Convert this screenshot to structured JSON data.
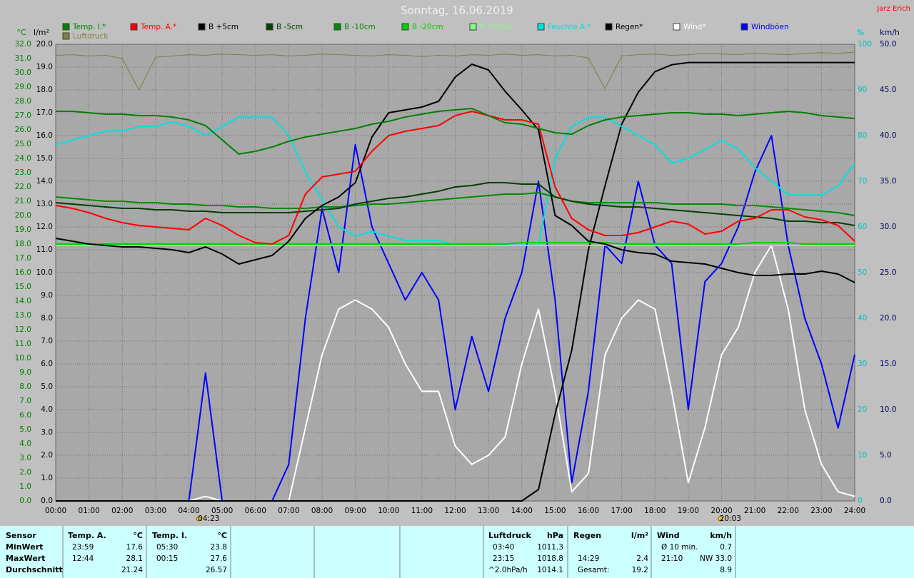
{
  "chart_data": {
    "type": "line",
    "title": "Sonntag, 16.06.2019",
    "author": "Jarz Erich",
    "ylabel": "°C",
    "y2label": "l/m²",
    "y3label": "%",
    "y4label": "km/h",
    "grid": true,
    "xlim": [
      0,
      24
    ],
    "xticks": [
      {
        "value": 0,
        "label": "00:00"
      },
      {
        "value": 1,
        "label": "01:00"
      },
      {
        "value": 2,
        "label": "02:00"
      },
      {
        "value": 3,
        "label": "03:00"
      },
      {
        "value": 4,
        "label": "04:00"
      },
      {
        "value": 5,
        "label": "05:00"
      },
      {
        "value": 6,
        "label": "06:00"
      },
      {
        "value": 7,
        "label": "07:00"
      },
      {
        "value": 8,
        "label": "08:00"
      },
      {
        "value": 9,
        "label": "09:00"
      },
      {
        "value": 10,
        "label": "10:00"
      },
      {
        "value": 11,
        "label": "11:00"
      },
      {
        "value": 12,
        "label": "12:00"
      },
      {
        "value": 13,
        "label": "13:00"
      },
      {
        "value": 14,
        "label": "14:00"
      },
      {
        "value": 15,
        "label": "15:00"
      },
      {
        "value": 16,
        "label": "16:00"
      },
      {
        "value": 17,
        "label": "17:00"
      },
      {
        "value": 18,
        "label": "18:00"
      },
      {
        "value": 19,
        "label": "19:00"
      },
      {
        "value": 20,
        "label": "20:00"
      },
      {
        "value": 21,
        "label": "21:00"
      },
      {
        "value": 22,
        "label": "22:00"
      },
      {
        "value": 23,
        "label": "23:00"
      },
      {
        "value": 24,
        "label": "24:00"
      }
    ],
    "ylim": [
      0,
      32
    ],
    "yticks": [
      {
        "value": 0,
        "label": "0.0"
      },
      {
        "value": 1,
        "label": "1.0"
      },
      {
        "value": 2,
        "label": "2.0"
      },
      {
        "value": 3,
        "label": "3.0"
      },
      {
        "value": 4,
        "label": "4.0"
      },
      {
        "value": 5,
        "label": "5.0"
      },
      {
        "value": 6,
        "label": "6.0"
      },
      {
        "value": 7,
        "label": "7.0"
      },
      {
        "value": 8,
        "label": "8.0"
      },
      {
        "value": 9,
        "label": "9.0"
      },
      {
        "value": 10,
        "label": "10.0"
      },
      {
        "value": 11,
        "label": "11.0"
      },
      {
        "value": 12,
        "label": "12.0"
      },
      {
        "value": 13,
        "label": "13.0"
      },
      {
        "value": 14,
        "label": "14.0"
      },
      {
        "value": 15,
        "label": "15.0"
      },
      {
        "value": 16,
        "label": "16.0"
      },
      {
        "value": 17,
        "label": "17.0"
      },
      {
        "value": 18,
        "label": "18.0"
      },
      {
        "value": 19,
        "label": "19.0"
      },
      {
        "value": 20,
        "label": "20.0"
      },
      {
        "value": 21,
        "label": "21.0"
      },
      {
        "value": 22,
        "label": "22.0"
      },
      {
        "value": 23,
        "label": "23.0"
      },
      {
        "value": 24,
        "label": "24.0"
      },
      {
        "value": 25,
        "label": "25.0"
      },
      {
        "value": 26,
        "label": "26.0"
      },
      {
        "value": 27,
        "label": "27.0"
      },
      {
        "value": 28,
        "label": "28.0"
      },
      {
        "value": 29,
        "label": "29.0"
      },
      {
        "value": 30,
        "label": "30.0"
      },
      {
        "value": 31,
        "label": "31.0"
      },
      {
        "value": 32,
        "label": "32.0"
      }
    ],
    "y2lim": [
      0,
      20
    ],
    "y2ticks": [
      {
        "value": 0,
        "label": "0.0"
      },
      {
        "value": 1,
        "label": "1.0"
      },
      {
        "value": 2,
        "label": "2.0"
      },
      {
        "value": 3,
        "label": "3.0"
      },
      {
        "value": 4,
        "label": "4.0"
      },
      {
        "value": 5,
        "label": "5.0"
      },
      {
        "value": 6,
        "label": "6.0"
      },
      {
        "value": 7,
        "label": "7.0"
      },
      {
        "value": 8,
        "label": "8.0"
      },
      {
        "value": 9,
        "label": "9.0"
      },
      {
        "value": 10,
        "label": "10.0"
      },
      {
        "value": 11,
        "label": "11.0"
      },
      {
        "value": 12,
        "label": "12.0"
      },
      {
        "value": 13,
        "label": "13.0"
      },
      {
        "value": 14,
        "label": "14.0"
      },
      {
        "value": 15,
        "label": "15.0"
      },
      {
        "value": 16,
        "label": "16.0"
      },
      {
        "value": 17,
        "label": "17.0"
      },
      {
        "value": 18,
        "label": "18.0"
      },
      {
        "value": 19,
        "label": "19.0"
      },
      {
        "value": 20,
        "label": "20.0"
      }
    ],
    "y3lim": [
      0,
      100
    ],
    "y3ticks": [
      0,
      10,
      20,
      30,
      40,
      50,
      60,
      70,
      80,
      90,
      100
    ],
    "y4lim": [
      0,
      50
    ],
    "y4ticks": [
      {
        "value": 0,
        "label": "0.0"
      },
      {
        "value": 5,
        "label": "5.0"
      },
      {
        "value": 10,
        "label": "10.0"
      },
      {
        "value": 15,
        "label": "15.0"
      },
      {
        "value": 20,
        "label": "20.0"
      },
      {
        "value": 25,
        "label": "25.0"
      },
      {
        "value": 30,
        "label": "30.0"
      },
      {
        "value": 35,
        "label": "35.0"
      },
      {
        "value": 40,
        "label": "40.0"
      },
      {
        "value": 45,
        "label": "45.0"
      },
      {
        "value": 50,
        "label": "50.0"
      }
    ],
    "y5lim": [
      950,
      1020
    ],
    "annotations": [
      {
        "x": 4.383,
        "label": "04:23"
      },
      {
        "x": 20.05,
        "label": "20:03"
      }
    ],
    "x": [
      0,
      0.5,
      1,
      1.5,
      2,
      2.5,
      3,
      3.5,
      4,
      4.5,
      5,
      5.5,
      6,
      6.5,
      7,
      7.5,
      8,
      8.5,
      9,
      9.5,
      10,
      10.5,
      11,
      11.5,
      12,
      12.5,
      13,
      13.5,
      14,
      14.5,
      15,
      15.5,
      16,
      16.5,
      17,
      17.5,
      18,
      18.5,
      19,
      19.5,
      20,
      20.5,
      21,
      21.5,
      22,
      22.5,
      23,
      23.5,
      24
    ],
    "series": [
      {
        "name": "Temp. I.*",
        "color": "#008000",
        "axis": "y",
        "values": [
          27.3,
          27.3,
          27.2,
          27.1,
          27.1,
          27.0,
          27.0,
          26.9,
          26.7,
          26.3,
          25.3,
          24.3,
          24.5,
          24.8,
          25.2,
          25.5,
          25.7,
          25.9,
          26.1,
          26.4,
          26.6,
          26.9,
          27.1,
          27.3,
          27.4,
          27.5,
          27.0,
          26.5,
          26.4,
          26.1,
          25.8,
          25.7,
          26.3,
          26.7,
          26.9,
          27.0,
          27.1,
          27.2,
          27.2,
          27.1,
          27.1,
          27.0,
          27.1,
          27.2,
          27.3,
          27.2,
          27.0,
          26.9,
          26.8
        ]
      },
      {
        "name": "Temp. A.*",
        "color": "#ff0000",
        "axis": "y",
        "values": [
          20.7,
          20.5,
          20.2,
          19.8,
          19.5,
          19.3,
          19.2,
          19.1,
          19.0,
          19.8,
          19.3,
          18.6,
          18.1,
          18.0,
          18.6,
          21.5,
          22.7,
          22.9,
          23.1,
          24.5,
          25.6,
          25.9,
          26.1,
          26.3,
          27.0,
          27.3,
          27.0,
          26.7,
          26.7,
          26.4,
          22.0,
          19.8,
          19.0,
          18.6,
          18.6,
          18.8,
          19.2,
          19.6,
          19.4,
          18.7,
          18.9,
          19.6,
          19.8,
          20.4,
          20.4,
          19.9,
          19.7,
          19.3,
          18.2
        ]
      },
      {
        "name": "B +5cm",
        "color": "#000000",
        "axis": "y",
        "values": [
          18.4,
          18.2,
          18.0,
          17.9,
          17.8,
          17.8,
          17.7,
          17.6,
          17.4,
          17.8,
          17.3,
          16.6,
          16.9,
          17.2,
          18.2,
          19.8,
          20.7,
          21.3,
          22.3,
          25.5,
          27.2,
          27.4,
          27.6,
          28.0,
          29.7,
          30.6,
          30.2,
          28.7,
          27.4,
          26.0,
          20.0,
          19.3,
          18.2,
          18.0,
          17.6,
          17.4,
          17.3,
          16.8,
          16.7,
          16.6,
          16.3,
          16.0,
          15.8,
          15.8,
          15.9,
          15.9,
          16.1,
          15.9,
          15.3
        ]
      },
      {
        "name": "B -5cm",
        "color": "#004000",
        "axis": "y",
        "values": [
          20.9,
          20.8,
          20.7,
          20.6,
          20.5,
          20.5,
          20.4,
          20.4,
          20.3,
          20.3,
          20.2,
          20.2,
          20.2,
          20.2,
          20.2,
          20.3,
          20.4,
          20.5,
          20.8,
          21.0,
          21.2,
          21.3,
          21.5,
          21.7,
          22.0,
          22.1,
          22.3,
          22.3,
          22.2,
          22.2,
          21.3,
          21.0,
          20.8,
          20.7,
          20.6,
          20.6,
          20.5,
          20.4,
          20.3,
          20.2,
          20.1,
          20.0,
          19.9,
          19.8,
          19.6,
          19.6,
          19.5,
          19.5,
          19.3
        ]
      },
      {
        "name": "B -10cm",
        "color": "#008c00",
        "axis": "y",
        "values": [
          21.3,
          21.2,
          21.1,
          21.0,
          21.0,
          20.9,
          20.9,
          20.8,
          20.8,
          20.7,
          20.7,
          20.6,
          20.6,
          20.5,
          20.5,
          20.5,
          20.6,
          20.6,
          20.7,
          20.8,
          20.8,
          20.9,
          21.0,
          21.1,
          21.2,
          21.3,
          21.4,
          21.5,
          21.5,
          21.6,
          21.3,
          21.0,
          20.9,
          20.9,
          20.9,
          20.9,
          20.9,
          20.8,
          20.8,
          20.8,
          20.8,
          20.7,
          20.7,
          20.6,
          20.5,
          20.4,
          20.3,
          20.2,
          20.0
        ]
      },
      {
        "name": "B -20cm",
        "color": "#00d000",
        "axis": "y",
        "values": [
          18.0,
          18.0,
          18.0,
          18.0,
          18.0,
          18.0,
          18.0,
          18.0,
          18.0,
          18.0,
          18.0,
          18.0,
          18.0,
          18.0,
          18.0,
          18.0,
          18.0,
          18.0,
          18.0,
          18.0,
          18.0,
          18.0,
          18.0,
          18.0,
          18.0,
          18.0,
          18.0,
          18.0,
          18.1,
          18.1,
          18.1,
          18.1,
          18.1,
          18.1,
          18.0,
          18.0,
          18.0,
          18.0,
          18.0,
          18.0,
          18.0,
          18.0,
          18.1,
          18.1,
          18.1,
          18.0,
          18.0,
          18.0,
          18.0
        ]
      },
      {
        "name": "B -50cm",
        "color": "#80ff80",
        "axis": "y",
        "values": [
          17.9,
          17.9,
          17.9,
          17.9,
          17.9,
          17.9,
          17.9,
          17.9,
          17.9,
          17.9,
          17.9,
          17.9,
          17.9,
          17.9,
          17.9,
          17.9,
          17.9,
          17.9,
          17.9,
          17.9,
          17.9,
          17.9,
          17.9,
          17.9,
          17.9,
          17.9,
          17.9,
          17.9,
          17.9,
          17.9,
          17.9,
          17.9,
          17.9,
          17.9,
          17.9,
          17.9,
          17.9,
          17.9,
          17.9,
          17.9,
          17.9,
          17.9,
          17.9,
          17.9,
          17.9,
          17.9,
          17.9,
          17.9,
          17.9
        ]
      },
      {
        "name": "Feuchte A.*",
        "color": "#00e0e0",
        "axis": "y3",
        "values": [
          78,
          79,
          80,
          81,
          81,
          82,
          82,
          83,
          82,
          80,
          82,
          84,
          84,
          84,
          80,
          72,
          66,
          60,
          58,
          59,
          58,
          57,
          57,
          57,
          56,
          56,
          56,
          56,
          56,
          56,
          75,
          82,
          84,
          84,
          82,
          80,
          78,
          74,
          75,
          77,
          79,
          77,
          73,
          70,
          67,
          67,
          67,
          69,
          74
        ]
      },
      {
        "name": "Regen*",
        "color": "#000000",
        "axis": "y2",
        "values": [
          0,
          0,
          0,
          0,
          0,
          0,
          0,
          0,
          0,
          0,
          0,
          0,
          0,
          0,
          0,
          0,
          0,
          0,
          0,
          0,
          0,
          0,
          0,
          0,
          0,
          0,
          0,
          0,
          0,
          0.5,
          3.8,
          6.6,
          11.0,
          13.8,
          16.5,
          17.9,
          18.8,
          19.1,
          19.2,
          19.2,
          19.2,
          19.2,
          19.2,
          19.2,
          19.2,
          19.2,
          19.2,
          19.2,
          19.2
        ]
      },
      {
        "name": "Wind*",
        "color": "#ffffff",
        "axis": "y4",
        "values": [
          0,
          0,
          0,
          0,
          0,
          0,
          0,
          0,
          0,
          0.5,
          0,
          0,
          0,
          0,
          0,
          8,
          16,
          21,
          22,
          21,
          19,
          15,
          12,
          12,
          6,
          4,
          5,
          7,
          15,
          21,
          12,
          1,
          3,
          16,
          20,
          22,
          21,
          12,
          2,
          8,
          16,
          19,
          25,
          28,
          21,
          10,
          4,
          1,
          0.5
        ]
      },
      {
        "name": "Windböen",
        "color": "#0000ff",
        "axis": "y4",
        "values": [
          0,
          0,
          0,
          0,
          0,
          0,
          0,
          0,
          0,
          14,
          0,
          0,
          0,
          0,
          4,
          20,
          32,
          25,
          39,
          30,
          26,
          22,
          25,
          22,
          10,
          18,
          12,
          20,
          25,
          35,
          22,
          2,
          12,
          28,
          26,
          35,
          28,
          26,
          10,
          24,
          26,
          30,
          36,
          40,
          28,
          20,
          15,
          8,
          16
        ]
      },
      {
        "name": "Luftdruck",
        "color": "#808040",
        "axis": "y5",
        "values": [
          1018.3,
          1018.4,
          1018.2,
          1018.3,
          1017.8,
          1013.0,
          1018.0,
          1018.2,
          1018.4,
          1018.3,
          1018.5,
          1018.4,
          1018.3,
          1018.4,
          1018.2,
          1018.3,
          1018.5,
          1018.4,
          1018.3,
          1018.2,
          1018.4,
          1018.3,
          1018.1,
          1018.3,
          1018.2,
          1018.4,
          1018.3,
          1018.5,
          1018.3,
          1018.4,
          1018.2,
          1018.3,
          1017.9,
          1013.2,
          1018.2,
          1018.4,
          1018.5,
          1018.3,
          1018.4,
          1018.6,
          1018.5,
          1018.4,
          1018.6,
          1018.5,
          1018.4,
          1018.6,
          1018.7,
          1018.6,
          1018.8
        ]
      }
    ]
  },
  "table": {
    "row_labels": [
      "Sensor",
      "MinWert",
      "MaxWert",
      "Durchschnitt"
    ],
    "columns": [
      {
        "header": "Temp. A.",
        "unit": "°C",
        "min": [
          "23:59",
          "17.6"
        ],
        "max": [
          "12:44",
          "28.1"
        ],
        "avg": [
          "21.24"
        ]
      },
      {
        "header": "Temp. I.",
        "unit": "°C",
        "min": [
          "05:30",
          "23.8"
        ],
        "max": [
          "00:15",
          "27.6"
        ],
        "avg": [
          "26.57"
        ]
      },
      {
        "header": "Luftdruck",
        "unit": "hPa",
        "min": [
          "03:40",
          "1011.3"
        ],
        "max": [
          "23:15",
          "1018.8"
        ],
        "avg": [
          "^2.0hPa/h",
          "1014.1"
        ]
      },
      {
        "header": "Regen",
        "unit": "l/m²",
        "max": [
          "14:29",
          "2.4"
        ],
        "avg": [
          "Gesamt:",
          "19.2"
        ]
      },
      {
        "header": "Wind",
        "unit": "km/h",
        "min": [
          "Ø 10 min.",
          "0.7"
        ],
        "max": [
          "21:10",
          "NW 33.0"
        ],
        "avg": [
          "8.9"
        ]
      }
    ]
  }
}
